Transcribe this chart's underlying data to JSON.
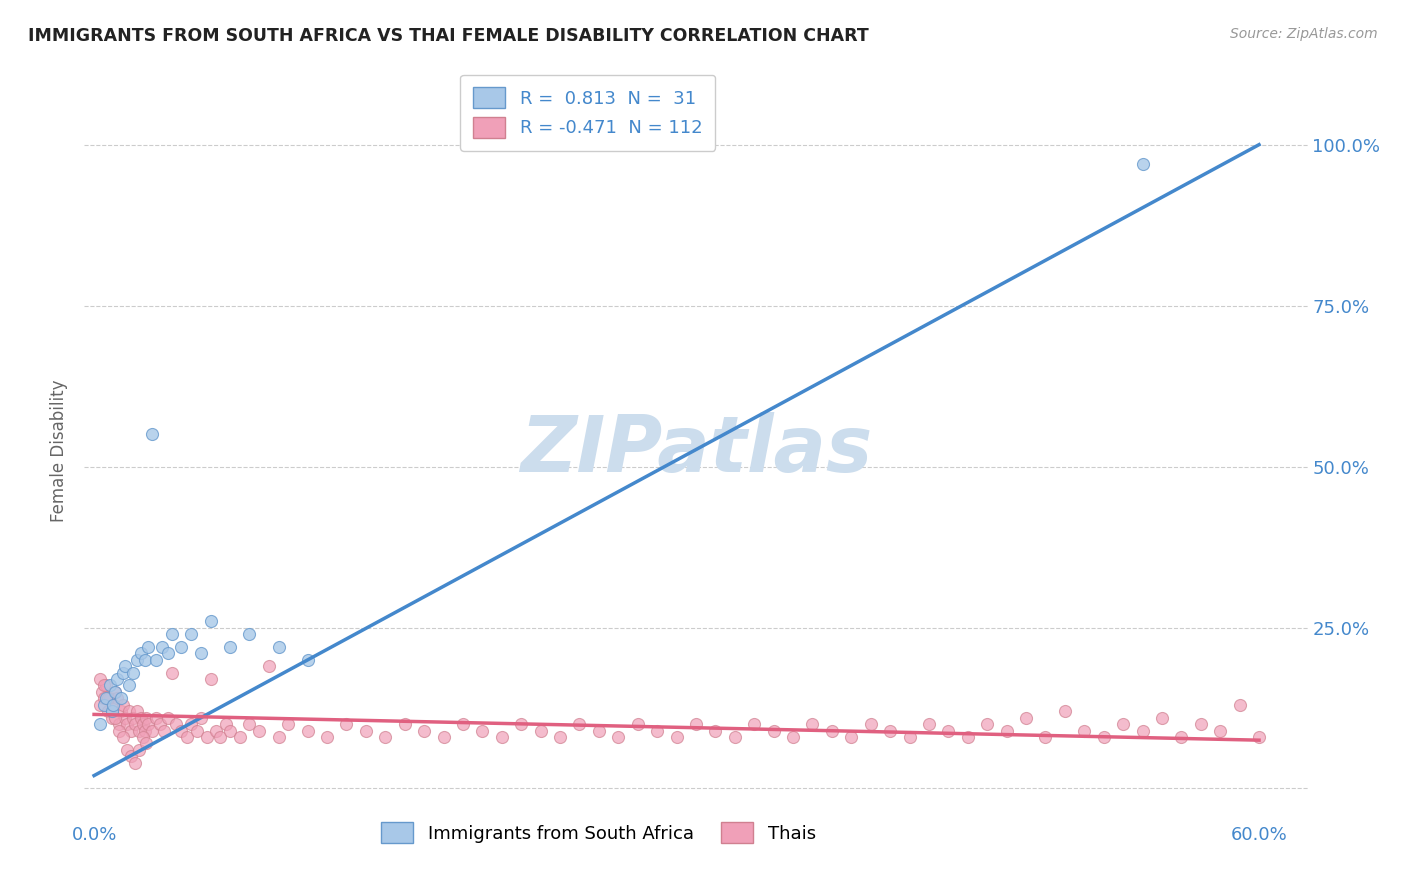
{
  "title": "IMMIGRANTS FROM SOUTH AFRICA VS THAI FEMALE DISABILITY CORRELATION CHART",
  "source": "Source: ZipAtlas.com",
  "ylabel": "Female Disability",
  "xlim_min": -0.005,
  "xlim_max": 0.625,
  "ylim_min": -0.05,
  "ylim_max": 1.1,
  "ytick_vals": [
    0.0,
    0.25,
    0.5,
    0.75,
    1.0
  ],
  "ytick_labels": [
    "",
    "25.0%",
    "50.0%",
    "75.0%",
    "100.0%"
  ],
  "xtick_vals": [
    0.0,
    0.1,
    0.2,
    0.3,
    0.4,
    0.5,
    0.6
  ],
  "xtick_labels": [
    "0.0%",
    "",
    "",
    "",
    "",
    "",
    "60.0%"
  ],
  "legend_entry1_label": "Immigrants from South Africa",
  "legend_entry2_label": "Thais",
  "legend_r1": " 0.813",
  "legend_n1": " 31",
  "legend_r2": "-0.471",
  "legend_n2": "112",
  "blue_scatter_color": "#a8c8e8",
  "blue_line_color": "#4488cc",
  "pink_scatter_color": "#f0a0b8",
  "pink_line_color": "#e06080",
  "watermark": "ZIPatlas",
  "watermark_color": "#ccdded",
  "blue_line_x0": 0.0,
  "blue_line_y0": 0.02,
  "blue_line_x1": 0.6,
  "blue_line_y1": 1.0,
  "pink_line_x0": 0.0,
  "pink_line_y0": 0.115,
  "pink_line_x1": 0.6,
  "pink_line_y1": 0.075,
  "blue_scatter_x": [
    0.003,
    0.005,
    0.006,
    0.008,
    0.009,
    0.01,
    0.011,
    0.012,
    0.014,
    0.015,
    0.016,
    0.018,
    0.02,
    0.022,
    0.024,
    0.026,
    0.028,
    0.03,
    0.032,
    0.035,
    0.038,
    0.04,
    0.045,
    0.05,
    0.055,
    0.06,
    0.07,
    0.08,
    0.095,
    0.11,
    0.54
  ],
  "blue_scatter_y": [
    0.1,
    0.13,
    0.14,
    0.16,
    0.12,
    0.13,
    0.15,
    0.17,
    0.14,
    0.18,
    0.19,
    0.16,
    0.18,
    0.2,
    0.21,
    0.2,
    0.22,
    0.55,
    0.2,
    0.22,
    0.21,
    0.24,
    0.22,
    0.24,
    0.21,
    0.26,
    0.22,
    0.24,
    0.22,
    0.2,
    0.97
  ],
  "pink_scatter_x": [
    0.003,
    0.004,
    0.005,
    0.006,
    0.007,
    0.008,
    0.009,
    0.01,
    0.011,
    0.012,
    0.013,
    0.014,
    0.015,
    0.016,
    0.017,
    0.018,
    0.019,
    0.02,
    0.021,
    0.022,
    0.023,
    0.024,
    0.025,
    0.026,
    0.027,
    0.028,
    0.03,
    0.032,
    0.034,
    0.036,
    0.038,
    0.04,
    0.042,
    0.045,
    0.048,
    0.05,
    0.053,
    0.055,
    0.058,
    0.06,
    0.063,
    0.065,
    0.068,
    0.07,
    0.075,
    0.08,
    0.085,
    0.09,
    0.095,
    0.1,
    0.11,
    0.12,
    0.13,
    0.14,
    0.15,
    0.16,
    0.17,
    0.18,
    0.19,
    0.2,
    0.21,
    0.22,
    0.23,
    0.24,
    0.25,
    0.26,
    0.27,
    0.28,
    0.29,
    0.3,
    0.31,
    0.32,
    0.33,
    0.34,
    0.35,
    0.36,
    0.37,
    0.38,
    0.39,
    0.4,
    0.41,
    0.42,
    0.43,
    0.44,
    0.45,
    0.46,
    0.47,
    0.48,
    0.49,
    0.5,
    0.51,
    0.52,
    0.53,
    0.54,
    0.55,
    0.56,
    0.57,
    0.58,
    0.59,
    0.6,
    0.003,
    0.005,
    0.007,
    0.009,
    0.011,
    0.013,
    0.015,
    0.017,
    0.019,
    0.021,
    0.023,
    0.025,
    0.027
  ],
  "pink_scatter_y": [
    0.13,
    0.15,
    0.14,
    0.16,
    0.12,
    0.14,
    0.11,
    0.13,
    0.15,
    0.14,
    0.1,
    0.12,
    0.13,
    0.11,
    0.1,
    0.12,
    0.09,
    0.11,
    0.1,
    0.12,
    0.09,
    0.11,
    0.1,
    0.09,
    0.11,
    0.1,
    0.09,
    0.11,
    0.1,
    0.09,
    0.11,
    0.18,
    0.1,
    0.09,
    0.08,
    0.1,
    0.09,
    0.11,
    0.08,
    0.17,
    0.09,
    0.08,
    0.1,
    0.09,
    0.08,
    0.1,
    0.09,
    0.19,
    0.08,
    0.1,
    0.09,
    0.08,
    0.1,
    0.09,
    0.08,
    0.1,
    0.09,
    0.08,
    0.1,
    0.09,
    0.08,
    0.1,
    0.09,
    0.08,
    0.1,
    0.09,
    0.08,
    0.1,
    0.09,
    0.08,
    0.1,
    0.09,
    0.08,
    0.1,
    0.09,
    0.08,
    0.1,
    0.09,
    0.08,
    0.1,
    0.09,
    0.08,
    0.1,
    0.09,
    0.08,
    0.1,
    0.09,
    0.11,
    0.08,
    0.12,
    0.09,
    0.08,
    0.1,
    0.09,
    0.11,
    0.08,
    0.1,
    0.09,
    0.13,
    0.08,
    0.17,
    0.16,
    0.14,
    0.12,
    0.11,
    0.09,
    0.08,
    0.06,
    0.05,
    0.04,
    0.06,
    0.08,
    0.07
  ]
}
